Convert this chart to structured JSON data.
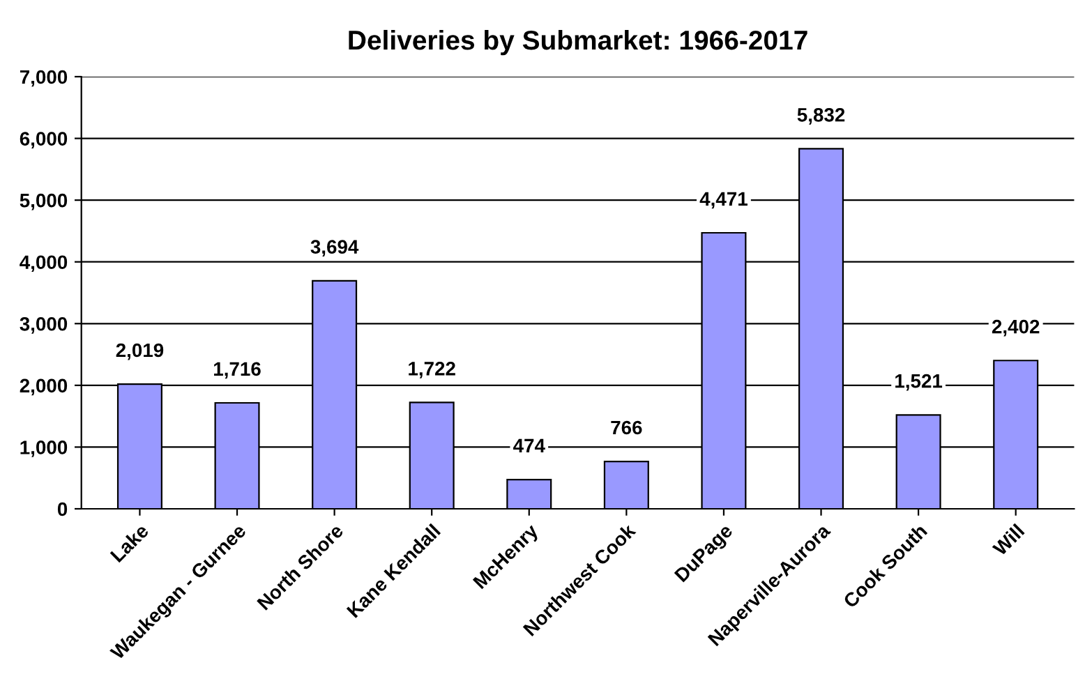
{
  "chart_data": {
    "type": "bar",
    "title": "Deliveries by Submarket: 1966-2017",
    "categories": [
      "Lake",
      "Waukegan - Gurnee",
      "North Shore",
      "Kane Kendall",
      "McHenry",
      "Northwest Cook",
      "DuPage",
      "Naperville-Aurora",
      "Cook South",
      "Will"
    ],
    "values": [
      2019,
      1716,
      3694,
      1722,
      474,
      766,
      4471,
      5832,
      1521,
      2402
    ],
    "value_labels": [
      "2,019",
      "1,716",
      "3,694",
      "1,722",
      "474",
      "766",
      "4,471",
      "5,832",
      "1,521",
      "2,402"
    ],
    "color": "#9999ff",
    "ylim": [
      0,
      7000
    ],
    "yticks": [
      {
        "value": 0,
        "label": "0"
      },
      {
        "value": 1000,
        "label": "1,000"
      },
      {
        "value": 2000,
        "label": "2,000"
      },
      {
        "value": 3000,
        "label": "3,000"
      },
      {
        "value": 4000,
        "label": "4,000"
      },
      {
        "value": 5000,
        "label": "5,000"
      },
      {
        "value": 6000,
        "label": "6,000"
      },
      {
        "value": 7000,
        "label": "7,000"
      }
    ],
    "grid": "y",
    "legend": false
  }
}
